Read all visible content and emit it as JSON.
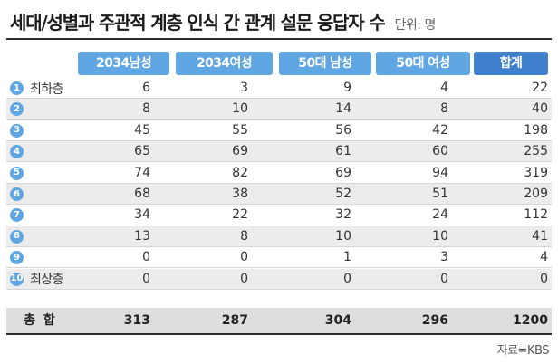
{
  "title": "세대/성별과 주관적 계층 인식 간 관계 설문 응답자 수",
  "unit": "단위: 명",
  "colors": {
    "header_blue": "#5fa6e2",
    "header_total": "#3f7fcc",
    "badge": "#5fa6e2"
  },
  "headers": [
    "2034남성",
    "2034여성",
    "50대 남성",
    "50대 여성",
    "합계"
  ],
  "rows": [
    {
      "num": "1",
      "label": "최하층",
      "values": [
        "6",
        "3",
        "9",
        "4",
        "22"
      ]
    },
    {
      "num": "2",
      "label": "",
      "values": [
        "8",
        "10",
        "14",
        "8",
        "40"
      ]
    },
    {
      "num": "3",
      "label": "",
      "values": [
        "45",
        "55",
        "56",
        "42",
        "198"
      ]
    },
    {
      "num": "4",
      "label": "",
      "values": [
        "65",
        "69",
        "61",
        "60",
        "255"
      ]
    },
    {
      "num": "5",
      "label": "",
      "values": [
        "74",
        "82",
        "69",
        "94",
        "319"
      ]
    },
    {
      "num": "6",
      "label": "",
      "values": [
        "68",
        "38",
        "52",
        "51",
        "209"
      ]
    },
    {
      "num": "7",
      "label": "",
      "values": [
        "34",
        "22",
        "32",
        "24",
        "112"
      ]
    },
    {
      "num": "8",
      "label": "",
      "values": [
        "13",
        "8",
        "10",
        "10",
        "41"
      ]
    },
    {
      "num": "9",
      "label": "",
      "values": [
        "0",
        "0",
        "1",
        "3",
        "4"
      ]
    },
    {
      "num": "10",
      "label": "최상층",
      "values": [
        "0",
        "0",
        "0",
        "0",
        "0"
      ]
    }
  ],
  "total": {
    "label": "총 합",
    "values": [
      "313",
      "287",
      "304",
      "296",
      "1200"
    ]
  },
  "source": "자료=KBS"
}
